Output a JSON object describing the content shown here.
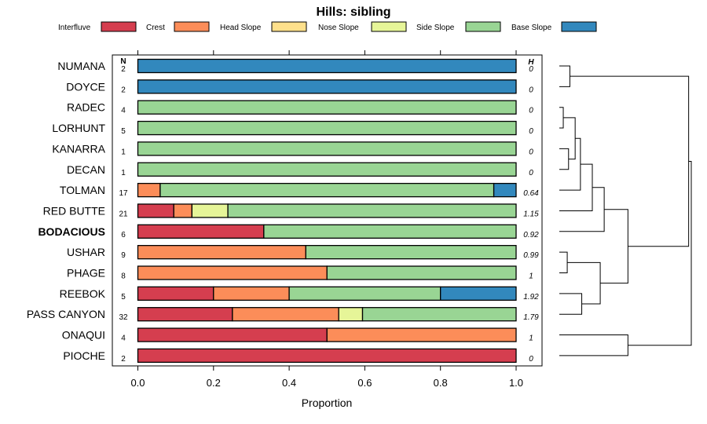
{
  "chart_data": {
    "type": "bar",
    "stacked": true,
    "orientation": "horizontal",
    "title": "Hills: sibling",
    "xlabel": "Proportion",
    "ylabel": "",
    "xlim": [
      0,
      1
    ],
    "xticks": [
      "0.0",
      "0.2",
      "0.4",
      "0.6",
      "0.8",
      "1.0"
    ],
    "xtick_values": [
      0,
      0.2,
      0.4,
      0.6,
      0.8,
      1.0
    ],
    "grid": false,
    "legend_position": "top",
    "n_header": "N",
    "h_header": "H",
    "legend": [
      {
        "name": "Interfluve",
        "color": "#D53E4F"
      },
      {
        "name": "Crest",
        "color": "#FC8D59"
      },
      {
        "name": "Head Slope",
        "color": "#FEE08B"
      },
      {
        "name": "Nose Slope",
        "color": "#E6F598"
      },
      {
        "name": "Side Slope",
        "color": "#99D594"
      },
      {
        "name": "Base Slope",
        "color": "#3288BD"
      }
    ],
    "categories": [
      "NUMANA",
      "DOYCE",
      "RADEC",
      "LORHUNT",
      "KANARRA",
      "DECAN",
      "TOLMAN",
      "RED BUTTE",
      "BODACIOUS",
      "USHAR",
      "PHAGE",
      "REEBOK",
      "PASS CANYON",
      "ONAQUI",
      "PIOCHE"
    ],
    "bold_category": "BODACIOUS",
    "n": [
      "2",
      "2",
      "4",
      "5",
      "1",
      "1",
      "17",
      "21",
      "6",
      "9",
      "8",
      "5",
      "32",
      "4",
      "2"
    ],
    "h": [
      "0",
      "0",
      "0",
      "0",
      "0",
      "0",
      "0.64",
      "1.15",
      "0.92",
      "0.99",
      "1",
      "1.92",
      "1.79",
      "1",
      "0"
    ],
    "series": [
      {
        "name": "Interfluve",
        "values": [
          0,
          0,
          0,
          0,
          0,
          0,
          0,
          0.095,
          0.333,
          0,
          0,
          0.2,
          0.25,
          0.5,
          1
        ]
      },
      {
        "name": "Crest",
        "values": [
          0,
          0,
          0,
          0,
          0,
          0,
          0.059,
          0.048,
          0,
          0.444,
          0.5,
          0.2,
          0.281,
          0.5,
          0
        ]
      },
      {
        "name": "Head Slope",
        "values": [
          0,
          0,
          0,
          0,
          0,
          0,
          0,
          0,
          0,
          0,
          0,
          0,
          0,
          0,
          0
        ]
      },
      {
        "name": "Nose Slope",
        "values": [
          0,
          0,
          0,
          0,
          0,
          0,
          0,
          0.095,
          0,
          0,
          0,
          0,
          0.063,
          0,
          0
        ]
      },
      {
        "name": "Side Slope",
        "values": [
          0,
          0,
          1,
          1,
          1,
          1,
          0.882,
          0.762,
          0.667,
          0.556,
          0.5,
          0.4,
          0.406,
          0,
          0
        ]
      },
      {
        "name": "Base Slope",
        "values": [
          1,
          1,
          0,
          0,
          0,
          0,
          0.059,
          0,
          0,
          0,
          0,
          0.2,
          0,
          0,
          0
        ]
      }
    ],
    "dendrogram": {
      "leaf_order": [
        "NUMANA",
        "DOYCE",
        "RADEC",
        "LORHUNT",
        "KANARRA",
        "DECAN",
        "TOLMAN",
        "RED BUTTE",
        "BODACIOUS",
        "USHAR",
        "PHAGE",
        "REEBOK",
        "PASS CANYON",
        "ONAQUI",
        "PIOCHE"
      ],
      "merges": [
        {
          "a": "NUMANA",
          "b": "DOYCE",
          "height": 0.08
        },
        {
          "a": "RADEC",
          "b": "LORHUNT",
          "height": 0.03
        },
        {
          "a": "KANARRA",
          "b": "DECAN",
          "height": 0.07
        },
        {
          "a": "RADEC+LORHUNT",
          "b": "KANARRA+DECAN",
          "height": 0.12
        },
        {
          "a": "RADEC+LORHUNT+KANARRA+DECAN",
          "b": "TOLMAN",
          "height": 0.16
        },
        {
          "a": "RADEC..TOLMAN",
          "b": "RED BUTTE",
          "height": 0.25
        },
        {
          "a": "RADEC..RED BUTTE",
          "b": "BODACIOUS",
          "height": 0.34
        },
        {
          "a": "USHAR",
          "b": "PHAGE",
          "height": 0.06
        },
        {
          "a": "REEBOK",
          "b": "PASS CANYON",
          "height": 0.17
        },
        {
          "a": "USHAR+PHAGE",
          "b": "REEBOK+PASS CANYON",
          "height": 0.31
        },
        {
          "a": "RADEC..BODACIOUS",
          "b": "USHAR..PASS CANYON",
          "height": 0.52
        },
        {
          "a": "NUMANA+DOYCE",
          "b": "RADEC..PASS CANYON",
          "height": 0.98
        },
        {
          "a": "ONAQUI",
          "b": "PIOCHE",
          "height": 0.52
        },
        {
          "a": "NUMANA..PASS CANYON",
          "b": "ONAQUI+PIOCHE",
          "height": 1.0
        }
      ]
    }
  }
}
